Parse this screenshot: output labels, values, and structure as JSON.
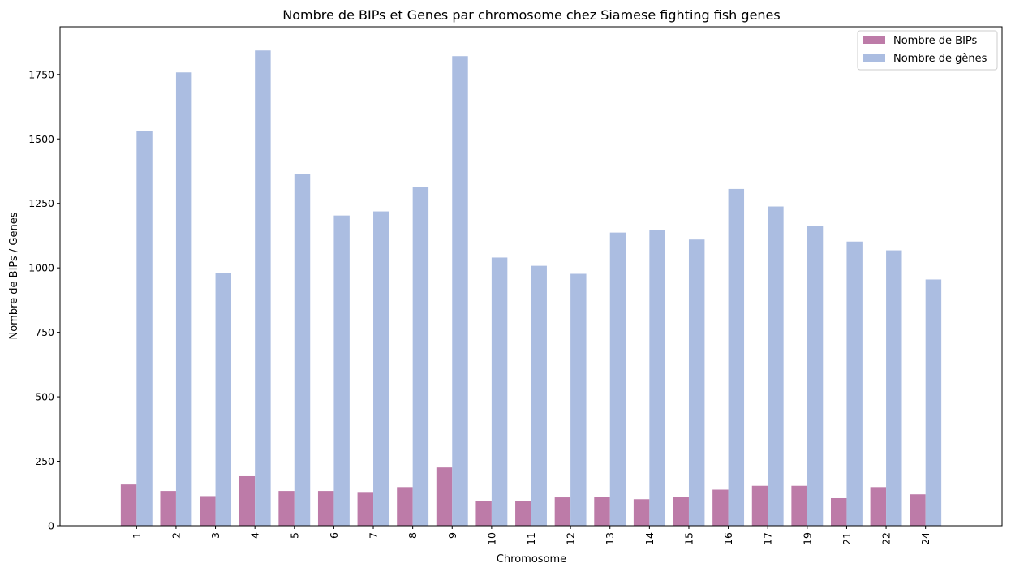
{
  "chart_data": {
    "type": "bar",
    "title": "Nombre de BIPs et Genes par chromosome chez Siamese fighting fish genes",
    "xlabel": "Chromosome",
    "ylabel": "Nombre de BIPs / Genes",
    "ylim": [
      0,
      1935
    ],
    "yticks": [
      0,
      250,
      500,
      750,
      1000,
      1250,
      1500,
      1750
    ],
    "categories": [
      "1",
      "2",
      "3",
      "4",
      "5",
      "6",
      "7",
      "8",
      "9",
      "10",
      "11",
      "12",
      "13",
      "14",
      "15",
      "16",
      "17",
      "19",
      "21",
      "22",
      "24"
    ],
    "series": [
      {
        "name": "Nombre de BIPs",
        "color": "#bd7ba8",
        "values": [
          160,
          135,
          115,
          192,
          135,
          135,
          128,
          150,
          226,
          97,
          95,
          110,
          113,
          103,
          113,
          140,
          155,
          155,
          107,
          150,
          122
        ]
      },
      {
        "name": "Nombre de gènes",
        "color": "#abbde1",
        "values": [
          1532,
          1758,
          980,
          1843,
          1363,
          1203,
          1219,
          1312,
          1821,
          1040,
          1008,
          977,
          1137,
          1146,
          1110,
          1306,
          1238,
          1162,
          1102,
          1068,
          955
        ]
      }
    ],
    "legend_position": "top-right",
    "grid": false
  }
}
